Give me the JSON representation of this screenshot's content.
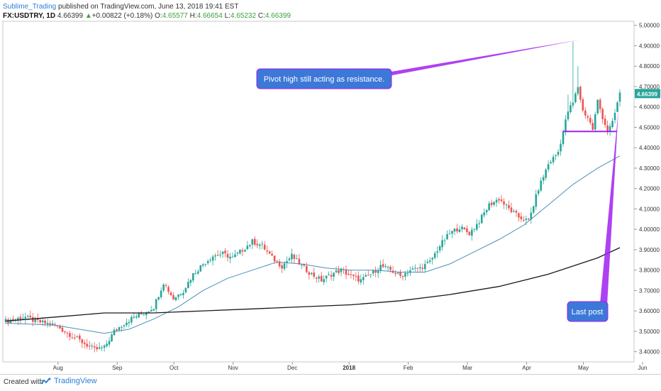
{
  "header": {
    "author": "Sublime_Trading",
    "published": "published on TradingView.com, June 13, 2018 19:41 EST",
    "symbol": "FX:USDTRY, 1D",
    "price": "4.66399",
    "change": "+0.00822 (+0.18%)",
    "o_label": "O:",
    "o_value": "4.65577",
    "h_label": "H:",
    "h_value": "4.66654",
    "l_label": "L:",
    "l_value": "4.65232",
    "c_label": "C:",
    "c_value": "4.66399"
  },
  "annotations": {
    "pivot": "Pivot high still acting as resistance.",
    "last_post": "Last post"
  },
  "footer": {
    "created": "Created with",
    "brand": "TradingView"
  },
  "colors": {
    "up": "#26a69a",
    "down": "#ef5350",
    "ma_short": "#4a90b8",
    "ma_long": "#1a1a1a",
    "annotation_fill": "#3c78d8",
    "annotation_line": "#a020f0",
    "last_price_bg": "#26a69a"
  },
  "chart_data": {
    "type": "candlestick",
    "symbol": "FX:USDTRY",
    "interval": "1D",
    "ylim": [
      3.35,
      5.02
    ],
    "y_ticks": [
      "5.00000",
      "4.90000",
      "4.80000",
      "4.70000",
      "4.60000",
      "4.50000",
      "4.40000",
      "4.30000",
      "4.20000",
      "4.10000",
      "4.00000",
      "3.90000",
      "3.80000",
      "3.70000",
      "3.60000",
      "3.50000",
      "3.40000"
    ],
    "x_ticks": [
      "Aug",
      "Sep",
      "Oct",
      "Nov",
      "Dec",
      "2018",
      "Feb",
      "Mar",
      "Apr",
      "May",
      "Jun"
    ],
    "last_price_label": "4.66399",
    "close_path": [
      [
        0,
        3.55
      ],
      [
        4,
        3.56
      ],
      [
        8,
        3.57
      ],
      [
        12,
        3.55
      ],
      [
        16,
        3.54
      ],
      [
        20,
        3.53
      ],
      [
        24,
        3.5
      ],
      [
        28,
        3.47
      ],
      [
        32,
        3.44
      ],
      [
        36,
        3.41
      ],
      [
        40,
        3.42
      ],
      [
        44,
        3.5
      ],
      [
        48,
        3.54
      ],
      [
        52,
        3.57
      ],
      [
        56,
        3.59
      ],
      [
        60,
        3.62
      ],
      [
        62,
        3.68
      ],
      [
        64,
        3.74
      ],
      [
        66,
        3.7
      ],
      [
        68,
        3.66
      ],
      [
        72,
        3.7
      ],
      [
        76,
        3.78
      ],
      [
        80,
        3.83
      ],
      [
        84,
        3.87
      ],
      [
        88,
        3.88
      ],
      [
        92,
        3.86
      ],
      [
        96,
        3.9
      ],
      [
        100,
        3.94
      ],
      [
        104,
        3.92
      ],
      [
        108,
        3.86
      ],
      [
        112,
        3.82
      ],
      [
        116,
        3.87
      ],
      [
        120,
        3.82
      ],
      [
        124,
        3.78
      ],
      [
        128,
        3.75
      ],
      [
        132,
        3.78
      ],
      [
        136,
        3.8
      ],
      [
        140,
        3.77
      ],
      [
        144,
        3.75
      ],
      [
        148,
        3.78
      ],
      [
        152,
        3.82
      ],
      [
        156,
        3.8
      ],
      [
        160,
        3.77
      ],
      [
        164,
        3.8
      ],
      [
        168,
        3.81
      ],
      [
        172,
        3.84
      ],
      [
        176,
        3.92
      ],
      [
        180,
        3.98
      ],
      [
        184,
        4.01
      ],
      [
        188,
        3.98
      ],
      [
        192,
        4.04
      ],
      [
        196,
        4.12
      ],
      [
        200,
        4.15
      ],
      [
        204,
        4.1
      ],
      [
        208,
        4.06
      ],
      [
        212,
        4.04
      ],
      [
        216,
        4.2
      ],
      [
        220,
        4.32
      ],
      [
        224,
        4.38
      ],
      [
        226,
        4.48
      ],
      [
        228,
        4.58
      ],
      [
        230,
        4.62
      ],
      [
        232,
        4.7
      ],
      [
        234,
        4.58
      ],
      [
        236,
        4.55
      ],
      [
        238,
        4.49
      ],
      [
        240,
        4.63
      ],
      [
        242,
        4.55
      ],
      [
        244,
        4.48
      ],
      [
        246,
        4.52
      ],
      [
        248,
        4.62
      ],
      [
        249,
        4.664
      ]
    ],
    "wick_spikes": [
      [
        230,
        4.92
      ],
      [
        232,
        4.8
      ],
      [
        228,
        4.66
      ]
    ],
    "series": [
      {
        "name": "",
        "type": "ma",
        "points": [
          [
            0,
            3.54
          ],
          [
            20,
            3.53
          ],
          [
            40,
            3.49
          ],
          [
            50,
            3.51
          ],
          [
            60,
            3.56
          ],
          [
            70,
            3.62
          ],
          [
            80,
            3.7
          ],
          [
            90,
            3.76
          ],
          [
            100,
            3.8
          ],
          [
            110,
            3.84
          ],
          [
            120,
            3.83
          ],
          [
            130,
            3.81
          ],
          [
            140,
            3.8
          ],
          [
            150,
            3.8
          ],
          [
            160,
            3.79
          ],
          [
            170,
            3.79
          ],
          [
            180,
            3.83
          ],
          [
            190,
            3.89
          ],
          [
            200,
            3.95
          ],
          [
            210,
            4.02
          ],
          [
            220,
            4.12
          ],
          [
            230,
            4.22
          ],
          [
            240,
            4.3
          ],
          [
            249,
            4.36
          ]
        ]
      },
      {
        "name": "",
        "type": "ma",
        "points": [
          [
            0,
            3.55
          ],
          [
            20,
            3.57
          ],
          [
            40,
            3.59
          ],
          [
            60,
            3.59
          ],
          [
            80,
            3.6
          ],
          [
            100,
            3.61
          ],
          [
            120,
            3.62
          ],
          [
            140,
            3.63
          ],
          [
            160,
            3.65
          ],
          [
            180,
            3.68
          ],
          [
            200,
            3.72
          ],
          [
            220,
            3.78
          ],
          [
            240,
            3.86
          ],
          [
            249,
            3.91
          ]
        ]
      }
    ],
    "horizontal_levels": [
      4.48
    ],
    "candles": 250
  }
}
